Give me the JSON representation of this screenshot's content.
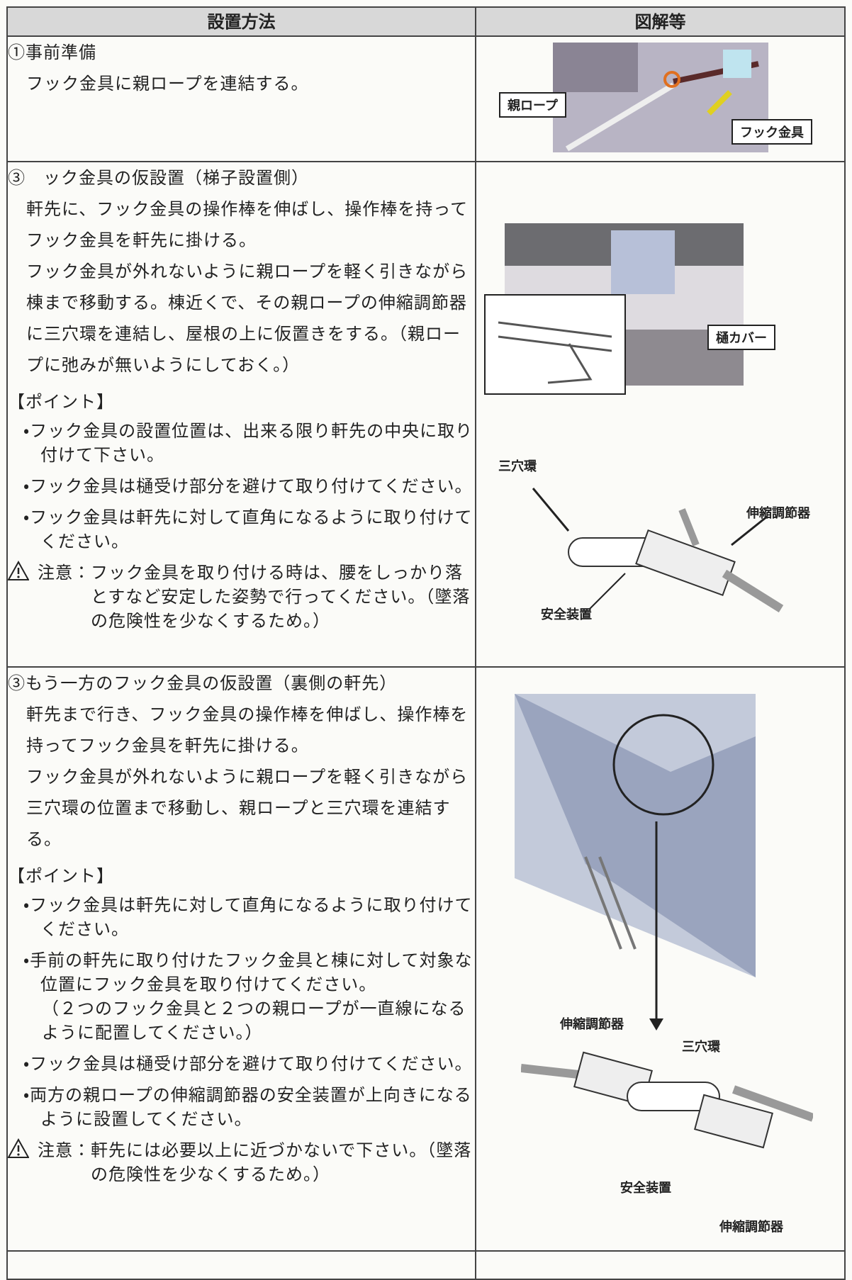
{
  "table": {
    "header": [
      "設置方法",
      "図解等"
    ],
    "rows": [
      {
        "title": "①事前準備",
        "body": [
          "フック金具に親ロープを連結する。"
        ],
        "figure": {
          "labels": [
            "親ロープ",
            "フック金具"
          ]
        }
      },
      {
        "title": "③　ック金具の仮設置（梯子設置側）",
        "body": [
          "軒先に、フック金具の操作棒を伸ばし、操作棒を持ってフック金具を軒先に掛ける。",
          "フック金具が外れないように親ロープを軽く引きながら棟まで移動する。棟近くで、その親ロープの伸縮調節器に三穴環を連結し、屋根の上に仮置きをする。（親ロープに弛みが無いようにしておく。）"
        ],
        "point_heading": "【ポイント】",
        "points": [
          {
            "text": "・フック金具の設置位置は、出来る限り軒先の中央に取り付けて下さい。"
          },
          {
            "text": "・フック金具は樋受け部分を避けて取り付けてください。"
          },
          {
            "text": "・フック金具は軒先に対して直角になるように取り付けてください。"
          }
        ],
        "caution": {
          "label": "注意：",
          "text": "フック金具を取り付ける時は、腰をしっかり落とすなど安定した姿勢で行ってください。（墜落の危険性を少なくするため。）"
        },
        "figure": {
          "labels": [
            "樋カバー",
            "三穴環",
            "伸縮調節器",
            "安全装置"
          ]
        }
      },
      {
        "title": "③もう一方のフック金具の仮設置（裏側の軒先）",
        "body": [
          "軒先まで行き、フック金具の操作棒を伸ばし、操作棒を持ってフック金具を軒先に掛ける。",
          "フック金具が外れないように親ロープを軽く引きながら三穴環の位置まで移動し、親ロープと三穴環を連結する。"
        ],
        "point_heading": "【ポイント】",
        "points": [
          {
            "text": "・フック金具は軒先に対して直角になるように取り付けてください。"
          },
          {
            "text": "・手前の軒先に取り付けたフック金具と棟に対して対象な位置にフック金具を取り付けてください。",
            "note": "（２つのフック金具と２つの親ロープが一直線になるように配置してください。）"
          },
          {
            "text": "・フック金具は樋受け部分を避けて取り付けてください。"
          },
          {
            "text": "・両方の親ロープの伸縮調節器の安全装置が上向きになるように設置してください。"
          }
        ],
        "caution": {
          "label": "注意：",
          "text": "軒先には必要以上に近づかないで下さい。（墜落の危険性を少なくするため。）"
        },
        "figure": {
          "labels": [
            "伸縮調節器",
            "三穴環",
            "安全装置",
            "伸縮調節器"
          ]
        }
      }
    ]
  }
}
